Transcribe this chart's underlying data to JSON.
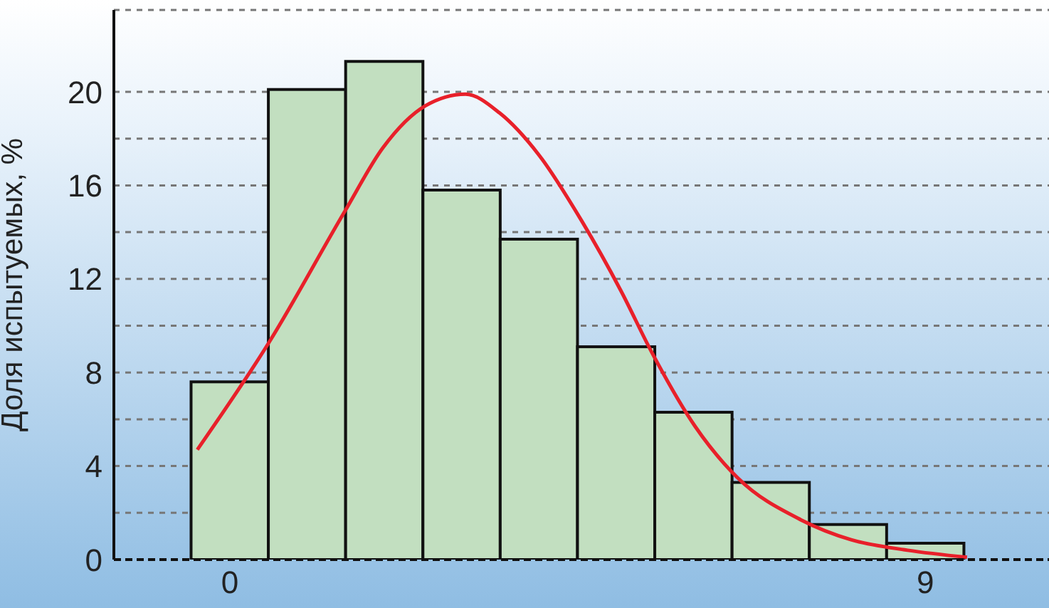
{
  "chart_data": {
    "type": "histogram",
    "ylabel": "Доля испытуемых, %",
    "bins": [
      -0.5,
      0.5,
      1.5,
      2.5,
      3.5,
      4.5,
      5.5,
      6.5,
      7.5,
      8.5,
      9.5
    ],
    "values": [
      7.6,
      20.1,
      21.3,
      15.8,
      13.7,
      9.1,
      6.3,
      3.3,
      1.5,
      0.7
    ],
    "color": "#c2dfc0",
    "series": [
      {
        "type": "line",
        "color": "#e8202a",
        "x": [
          -0.42,
          0.51,
          1.49,
          1.98,
          2.53,
          3.05,
          3.49,
          4.0,
          4.55,
          5.06,
          5.47,
          6.02,
          6.57,
          7.39,
          8.04,
          8.77,
          9.54
        ],
        "values": [
          4.7,
          9.3,
          14.9,
          17.6,
          19.4,
          19.9,
          19.1,
          17.3,
          14.5,
          11.5,
          8.8,
          5.7,
          3.5,
          1.7,
          0.85,
          0.4,
          0.1
        ]
      }
    ],
    "xlim": [
      -1.5,
      10.6
    ],
    "xticks": [
      0,
      9
    ],
    "ylim": [
      0,
      23.5
    ],
    "yticks": [
      0,
      {
        "value": 2,
        "label": null
      },
      4,
      {
        "value": 6,
        "label": null
      },
      8,
      {
        "value": 10,
        "label": null
      },
      12,
      {
        "value": 14,
        "label": null
      },
      16,
      {
        "value": 18,
        "label": null
      },
      20
    ],
    "grid": "y",
    "legend": false
  }
}
